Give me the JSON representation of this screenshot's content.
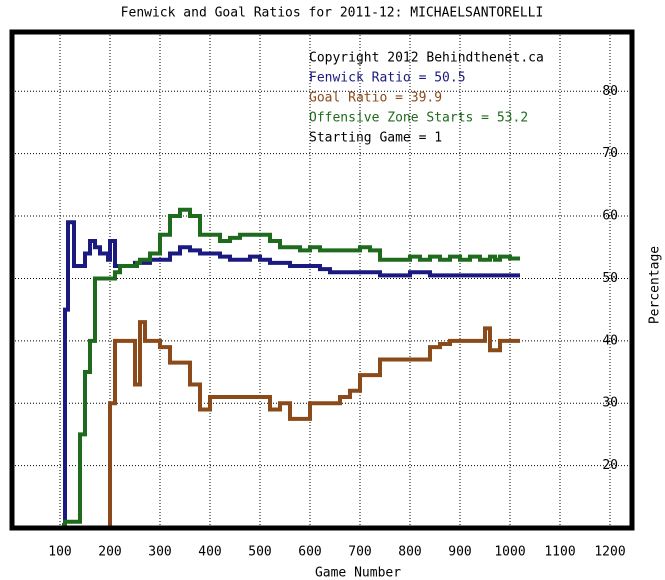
{
  "chart_data": {
    "type": "line",
    "step": true,
    "title": "Fenwick and Goal Ratios for 2011-12: MICHAELSANTORELLI",
    "x_label": "Game Number",
    "y_label": "Percentage",
    "annotations": [
      {
        "text": "Copyright 2012 Behindthenet.ca",
        "color": "#000000"
      },
      {
        "text": "Fenwick Ratio = 50.5",
        "color": "#1a1a80"
      },
      {
        "text": "Goal Ratio = 39.9",
        "color": "#8b4a1a"
      },
      {
        "text": "Offensive Zone Starts = 53.2",
        "color": "#1e6b1e"
      },
      {
        "text": "Starting Game = 1",
        "color": "#000000"
      }
    ],
    "x": [
      104,
      110,
      116,
      122,
      128,
      140,
      150,
      160,
      170,
      180,
      190,
      196,
      200,
      210,
      220,
      240,
      250,
      254,
      260,
      270,
      280,
      300,
      320,
      340,
      360,
      380,
      400,
      420,
      440,
      460,
      480,
      500,
      520,
      540,
      560,
      580,
      600,
      620,
      640,
      660,
      680,
      700,
      720,
      740,
      760,
      780,
      800,
      820,
      840,
      860,
      880,
      900,
      920,
      940,
      950,
      960,
      970,
      980,
      1000,
      1020
    ],
    "series": [
      {
        "color": "#1a1a80",
        "values": [
          10,
          45,
          59,
          59,
          52,
          52,
          54,
          56,
          55,
          54,
          54,
          53,
          56,
          52,
          52,
          52,
          52.5,
          52.5,
          52.5,
          52.5,
          53,
          53,
          54,
          55,
          54.5,
          54,
          54,
          53.5,
          53,
          53,
          53.5,
          53,
          52.5,
          52.5,
          52,
          52,
          52,
          51.5,
          51,
          51,
          51,
          51,
          51,
          50.5,
          50.5,
          50.5,
          51,
          51,
          50.5,
          50.5,
          50.5,
          50.5,
          50.5,
          50.5,
          50.5,
          50.5,
          50.5,
          50.5,
          50.5,
          50.5
        ]
      },
      {
        "color": "#8b4a1a",
        "values": [
          null,
          null,
          null,
          null,
          null,
          null,
          null,
          null,
          null,
          null,
          null,
          10,
          30,
          40,
          40,
          40,
          33,
          33,
          43,
          40,
          40,
          39,
          36.5,
          36.5,
          33,
          29,
          31,
          31,
          31,
          31,
          31,
          31,
          29,
          30,
          27.5,
          27.5,
          30,
          30,
          30,
          31,
          32,
          34.5,
          34.5,
          37,
          37,
          37,
          37,
          37,
          39,
          39.5,
          40,
          40,
          40,
          40,
          42,
          38.5,
          38.5,
          40,
          40,
          40
        ]
      },
      {
        "color": "#1e6b1e",
        "values": [
          10.5,
          11,
          11,
          11,
          11,
          25,
          35,
          40,
          50,
          50,
          50,
          50,
          50,
          51,
          52,
          52,
          52,
          52.5,
          53,
          53,
          54,
          57,
          60,
          61,
          60,
          57,
          57,
          56,
          56.5,
          57,
          57,
          57,
          56,
          55,
          55,
          54.5,
          55,
          54.5,
          54.5,
          54.5,
          54.5,
          55,
          54.5,
          53,
          53,
          53,
          53.5,
          53,
          53.5,
          53,
          53.5,
          53,
          53.5,
          53,
          53,
          53.5,
          53,
          53.5,
          53.2,
          53.2
        ]
      }
    ],
    "xlim": [
      4,
      1244
    ],
    "ylim": [
      10,
      89.5
    ],
    "xticks": [
      100,
      200,
      300,
      400,
      500,
      600,
      700,
      800,
      900,
      1000,
      1100,
      1200
    ],
    "yticks": [
      20,
      30,
      40,
      50,
      60,
      70,
      80
    ],
    "grid": true
  }
}
